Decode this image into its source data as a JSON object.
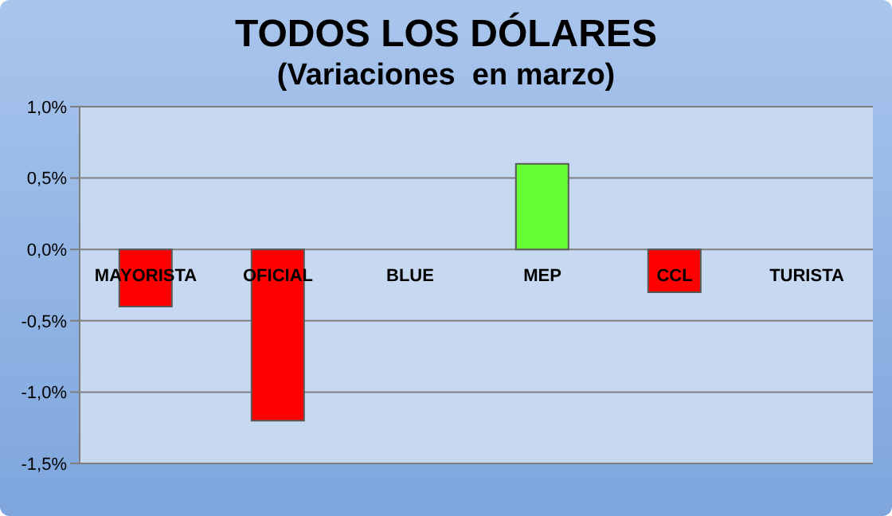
{
  "chart_data": {
    "type": "bar",
    "title": "TODOS LOS DÓLARES",
    "subtitle": "(Variaciones  en marzo)",
    "categories": [
      "MAYORISTA",
      "OFICIAL",
      "BLUE",
      "MEP",
      "CCL",
      "TURISTA"
    ],
    "values": [
      -0.4,
      -1.2,
      0,
      0.6,
      -0.3,
      0
    ],
    "colors": [
      "#ff0000",
      "#ff0000",
      "#ff0000",
      "#66ff33",
      "#ff0000",
      "#ff0000"
    ],
    "ylim": [
      -1.5,
      1.0
    ],
    "yticks": [
      {
        "value": -1.5,
        "label": "-1,5%"
      },
      {
        "value": -1.0,
        "label": "-1,0%"
      },
      {
        "value": -0.5,
        "label": "-0,5%"
      },
      {
        "value": 0,
        "label": "0,0%"
      },
      {
        "value": 0.5,
        "label": "0,5%"
      },
      {
        "value": 1.0,
        "label": "1,0%"
      }
    ],
    "grid": "y",
    "legend": false
  }
}
